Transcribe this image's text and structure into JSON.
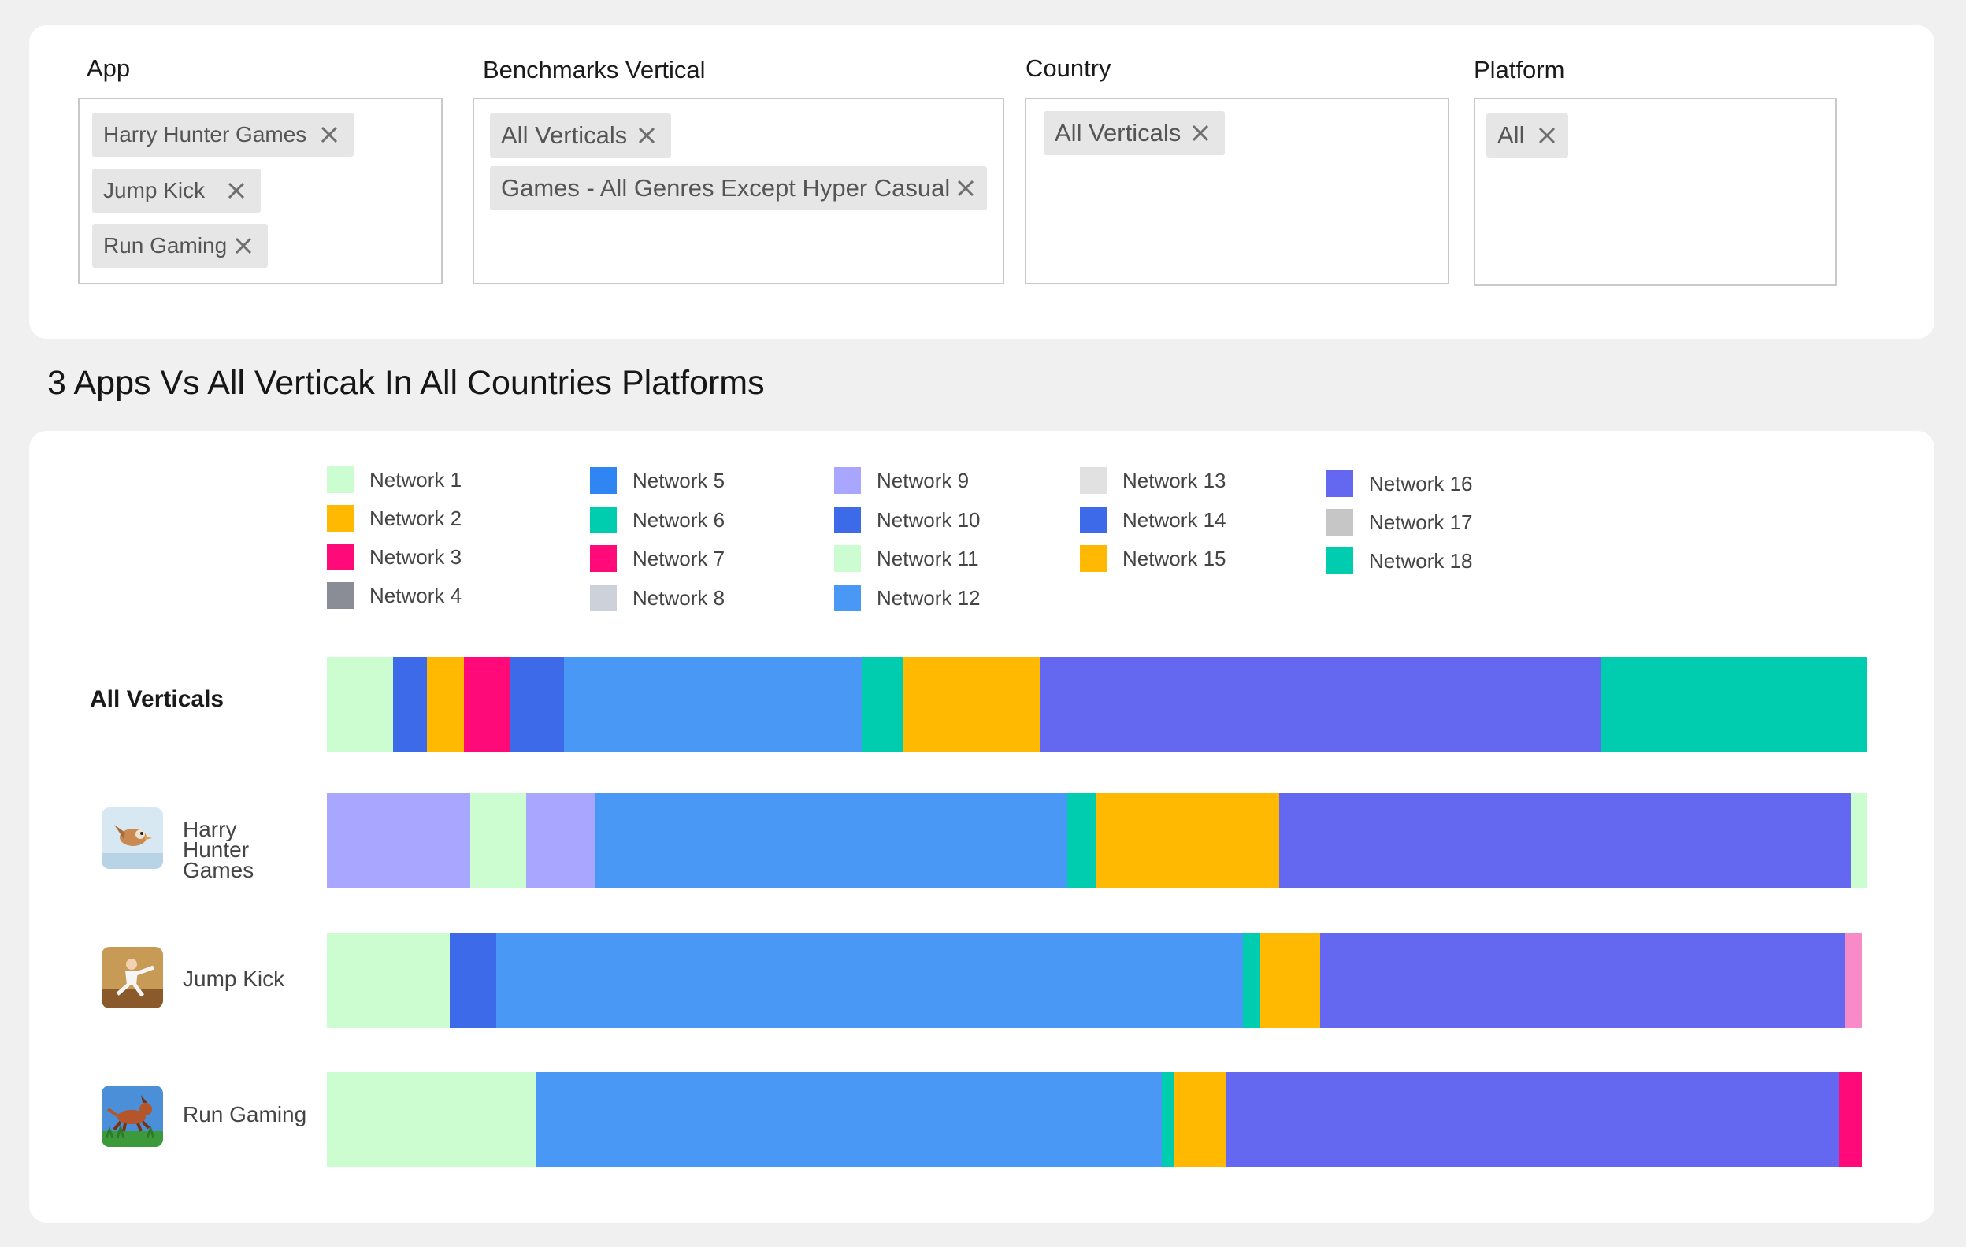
{
  "filters": {
    "app": {
      "label": "App",
      "chips": [
        "Harry Hunter Games",
        "Jump Kick",
        "Run Gaming"
      ]
    },
    "vertical": {
      "label": "Benchmarks Vertical",
      "chips": [
        "All Verticals",
        "Games - All Genres Except Hyper Casual"
      ]
    },
    "country": {
      "label": "Country",
      "chips": [
        "All Verticals"
      ]
    },
    "platform": {
      "label": "Platform",
      "chips": [
        "All"
      ]
    }
  },
  "page_title": "3 Apps Vs All Verticak In All Countries Platforms",
  "apps": [
    {
      "name": "Harry Hunter Games",
      "icon": "bird-icon"
    },
    {
      "name": "Jump Kick",
      "icon": "karate-icon"
    },
    {
      "name": "Run Gaming",
      "icon": "dog-icon"
    }
  ],
  "chart_data": {
    "type": "bar",
    "orientation": "horizontal",
    "stacked": true,
    "title": "3 Apps Vs All Verticak In All Countries Platforms",
    "legend_position": "top",
    "legend": [
      {
        "name": "Network 1",
        "color": "#ccfdd1"
      },
      {
        "name": "Network 2",
        "color": "#ffb900"
      },
      {
        "name": "Network 3",
        "color": "#ff0a78"
      },
      {
        "name": "Network 4",
        "color": "#8a8d96"
      },
      {
        "name": "Network 5",
        "color": "#2f86f2"
      },
      {
        "name": "Network 6",
        "color": "#00ccb0"
      },
      {
        "name": "Network 7",
        "color": "#ff0a78"
      },
      {
        "name": "Network 8",
        "color": "#cdd1da"
      },
      {
        "name": "Network 9",
        "color": "#a8a6fe"
      },
      {
        "name": "Network 10",
        "color": "#3c6ae8"
      },
      {
        "name": "Network 11",
        "color": "#ccfdd1"
      },
      {
        "name": "Network 12",
        "color": "#4a98f5"
      },
      {
        "name": "Network 13",
        "color": "#e1e1e1"
      },
      {
        "name": "Network 14",
        "color": "#3c6ae8"
      },
      {
        "name": "Network 15",
        "color": "#ffb900"
      },
      {
        "name": "Network 16",
        "color": "#6468f0"
      },
      {
        "name": "Network 17",
        "color": "#c6c6c6"
      },
      {
        "name": "Network 18",
        "color": "#00ccb0"
      }
    ],
    "categories": [
      "All Verticals",
      "Harry Hunter Games",
      "Jump Kick",
      "Run Gaming"
    ],
    "bars": [
      {
        "category": "All Verticals",
        "segments": [
          {
            "color": "#ccfdd1",
            "value": 4.3
          },
          {
            "color": "#3c6ae8",
            "value": 2.2
          },
          {
            "color": "#ffb900",
            "value": 2.4
          },
          {
            "color": "#ff0a78",
            "value": 3.0
          },
          {
            "color": "#3c6ae8",
            "value": 3.5
          },
          {
            "color": "#4a98f5",
            "value": 19.4
          },
          {
            "color": "#00ccb0",
            "value": 2.6
          },
          {
            "color": "#ffb900",
            "value": 8.9
          },
          {
            "color": "#6468f0",
            "value": 36.4
          },
          {
            "color": "#00ccb0",
            "value": 17.3
          }
        ]
      },
      {
        "category": "Harry Hunter Games",
        "segments": [
          {
            "color": "#a8a6fe",
            "value": 9.3
          },
          {
            "color": "#ccfdd1",
            "value": 3.6
          },
          {
            "color": "#a8a6fe",
            "value": 4.5
          },
          {
            "color": "#4a98f5",
            "value": 30.6
          },
          {
            "color": "#00ccb0",
            "value": 1.8
          },
          {
            "color": "#ffb900",
            "value": 11.9
          },
          {
            "color": "#6468f0",
            "value": 37.1
          },
          {
            "color": "#ccfdd1",
            "value": 1.0
          }
        ]
      },
      {
        "category": "Jump Kick",
        "segments": [
          {
            "color": "#ccfdd1",
            "value": 8.0
          },
          {
            "color": "#3c6ae8",
            "value": 3.0
          },
          {
            "color": "#4a98f5",
            "value": 48.5
          },
          {
            "color": "#00ccb0",
            "value": 1.1
          },
          {
            "color": "#ffb900",
            "value": 3.9
          },
          {
            "color": "#6468f0",
            "value": 34.1
          },
          {
            "color": "#f78bc8",
            "value": 1.1
          }
        ]
      },
      {
        "category": "Run Gaming",
        "segments": [
          {
            "color": "#ccfdd1",
            "value": 13.6
          },
          {
            "color": "#4a98f5",
            "value": 40.7
          },
          {
            "color": "#00ccb0",
            "value": 0.8
          },
          {
            "color": "#ffb900",
            "value": 3.4
          },
          {
            "color": "#6468f0",
            "value": 39.8
          },
          {
            "color": "#ff0a78",
            "value": 1.5
          }
        ]
      }
    ]
  }
}
